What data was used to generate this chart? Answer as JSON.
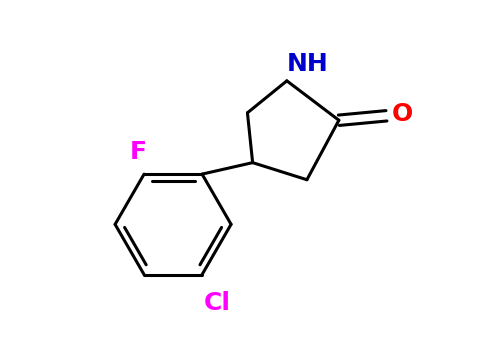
{
  "background_color": "#ffffff",
  "bond_color": "#000000",
  "bond_width": 2.2,
  "label_F": {
    "text": "F",
    "color": "#ff00ff",
    "fontsize": 18,
    "fontweight": "bold"
  },
  "label_Cl": {
    "text": "Cl",
    "color": "#ff00ff",
    "fontsize": 18,
    "fontweight": "bold"
  },
  "label_NH": {
    "text": "NH",
    "color": "#0000cc",
    "fontsize": 18,
    "fontweight": "bold"
  },
  "label_O": {
    "text": "O",
    "color": "#ff0000",
    "fontsize": 18,
    "fontweight": "bold"
  },
  "xlim": [
    -0.3,
    4.8
  ],
  "ylim": [
    -1.5,
    3.2
  ]
}
